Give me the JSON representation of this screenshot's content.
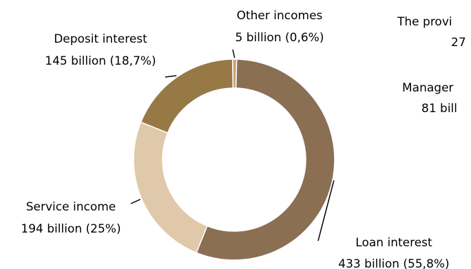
{
  "chart_data": {
    "type": "pie",
    "style": "donut",
    "legend": "none",
    "slices": [
      {
        "name": "Loan interest",
        "value_label": "433 billion (55,8%)",
        "value": 433,
        "percent": 55.8,
        "color": "#8b6f53"
      },
      {
        "name": "Service income",
        "value_label": "194 billion (25%)",
        "value": 194,
        "percent": 25.0,
        "color": "#e0c8aa"
      },
      {
        "name": "Deposit interest",
        "value_label": "145 billion (18,7%)",
        "value": 145,
        "percent": 18.7,
        "color": "#977945"
      },
      {
        "name": "Other incomes",
        "value_label": "5 billion (0,6%)",
        "value": 5,
        "percent": 0.6,
        "color": "#c8a27a"
      }
    ],
    "partial_labels": [
      {
        "line1": "The provi",
        "line2": "27"
      },
      {
        "line1": "Manager",
        "line2": "81 bill"
      }
    ]
  }
}
